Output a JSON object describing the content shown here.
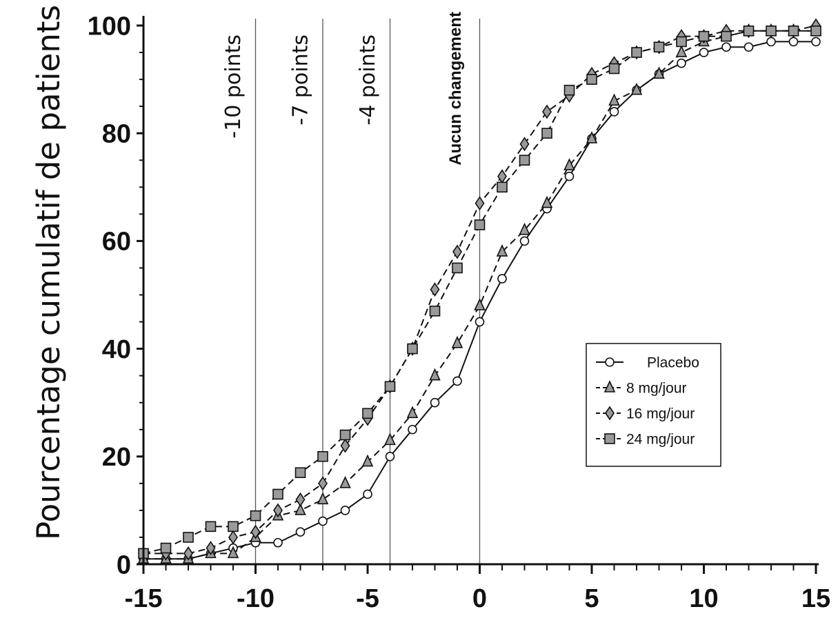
{
  "chart_data": {
    "type": "line",
    "ylabel": "Pourcentage cumulatif de patients",
    "xlabel": "",
    "xlim": [
      -15,
      15
    ],
    "ylim": [
      0,
      100
    ],
    "x_ticks": [
      "-15",
      "-10",
      "-5",
      "0",
      "5",
      "10",
      "15"
    ],
    "y_ticks": [
      "0",
      "20",
      "40",
      "60",
      "80",
      "100"
    ],
    "grid": false,
    "legend_position": "right",
    "reference_lines": [
      {
        "x": -10,
        "label": "-10 points"
      },
      {
        "x": -7,
        "label": "-7 points"
      },
      {
        "x": -4,
        "label": "-4 points"
      },
      {
        "x": 0,
        "label": "Aucun changement"
      }
    ],
    "x": [
      -15,
      -14,
      -13,
      -12,
      -11,
      -10,
      -9,
      -8,
      -7,
      -6,
      -5,
      -4,
      -3,
      -2,
      -1,
      0,
      1,
      2,
      3,
      4,
      5,
      6,
      7,
      8,
      9,
      10,
      11,
      12,
      13,
      14,
      15
    ],
    "series": [
      {
        "name": "Placebo",
        "style": "solid",
        "marker": "circle",
        "values": [
          1,
          1,
          1,
          2,
          3,
          4,
          4,
          6,
          8,
          10,
          13,
          20,
          25,
          30,
          34,
          45,
          53,
          60,
          66,
          72,
          79,
          84,
          88,
          91,
          93,
          95,
          96,
          96,
          97,
          97,
          97
        ]
      },
      {
        "name": "8 mg/jour",
        "style": "dashed",
        "marker": "triangle",
        "values": [
          1,
          1,
          1,
          2,
          2,
          5,
          9,
          10,
          12,
          15,
          19,
          23,
          28,
          35,
          41,
          48,
          58,
          62,
          67,
          74,
          79,
          86,
          88,
          91,
          95,
          97,
          98,
          99,
          99,
          99,
          99
        ]
      },
      {
        "name": "16 mg/jour",
        "style": "dashed",
        "marker": "diamond",
        "values": [
          2,
          2,
          2,
          3,
          5,
          6,
          10,
          12,
          15,
          22,
          27,
          33,
          40,
          51,
          58,
          67,
          72,
          78,
          84,
          87,
          91,
          93,
          95,
          96,
          98,
          98,
          99,
          99,
          99,
          99,
          100
        ]
      },
      {
        "name": "24 mg/jour",
        "style": "dashed",
        "marker": "square",
        "values": [
          2,
          3,
          5,
          7,
          7,
          9,
          13,
          17,
          20,
          24,
          28,
          33,
          40,
          47,
          55,
          63,
          70,
          75,
          80,
          88,
          90,
          92,
          95,
          96,
          97,
          98,
          98,
          99,
          99,
          99,
          99
        ]
      }
    ],
    "colors": {
      "line": "#111111",
      "marker_fill": "#9a9a9a",
      "ref_line": "#555555"
    }
  }
}
